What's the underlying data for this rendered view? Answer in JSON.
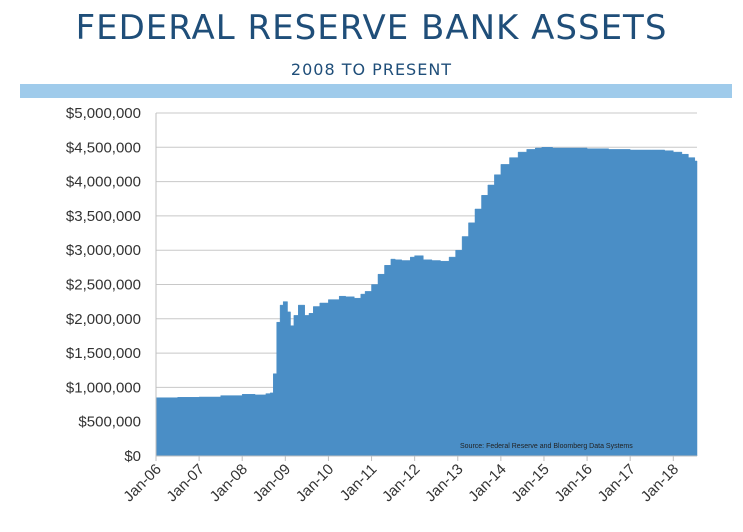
{
  "header": {
    "title": "FEDERAL RESERVE BANK ASSETS",
    "subtitle": "2008 TO PRESENT",
    "band_color": "#9fcbeb",
    "title_color": "#1f4e79"
  },
  "chart_data": {
    "type": "area",
    "title": "FEDERAL RESERVE BANK ASSETS",
    "subtitle": "2008 TO PRESENT",
    "xlabel": "",
    "ylabel": "",
    "ylim": [
      0,
      5000000
    ],
    "y_ticks": [
      0,
      500000,
      1000000,
      1500000,
      2000000,
      2500000,
      3000000,
      3500000,
      4000000,
      4500000,
      5000000
    ],
    "y_tick_labels": [
      "$0",
      "$500,000",
      "$1,000,000",
      "$1,500,000",
      "$2,000,000",
      "$2,500,000",
      "$3,000,000",
      "$3,500,000",
      "$4,000,000",
      "$4,500,000",
      "$5,000,000"
    ],
    "x_range": [
      2006.0,
      2018.55
    ],
    "x_ticks": [
      2006,
      2007,
      2008,
      2009,
      2010,
      2011,
      2012,
      2013,
      2014,
      2015,
      2016,
      2017,
      2018
    ],
    "x_tick_labels": [
      "Jan-06",
      "Jan-07",
      "Jan-08",
      "Jan-09",
      "Jan-10",
      "Jan-11",
      "Jan-12",
      "Jan-13",
      "Jan-14",
      "Jan-15",
      "Jan-16",
      "Jan-17",
      "Jan-18"
    ],
    "grid": true,
    "legend": "none",
    "fill_color": "#4a8ec6",
    "source_note": "Source:  Federal Reserve and Bloomberg Data Systems",
    "series": [
      {
        "x": [
          2006.0,
          2006.5,
          2007.0,
          2007.5,
          2008.0,
          2008.3,
          2008.55,
          2008.65,
          2008.72,
          2008.8,
          2008.88,
          2008.95,
          2009.05,
          2009.12,
          2009.2,
          2009.3,
          2009.45,
          2009.55,
          2009.65,
          2009.8,
          2010.0,
          2010.25,
          2010.4,
          2010.6,
          2010.75,
          2010.85,
          2011.0,
          2011.15,
          2011.3,
          2011.45,
          2011.55,
          2011.7,
          2011.9,
          2012.0,
          2012.2,
          2012.4,
          2012.6,
          2012.8,
          2012.95,
          2013.1,
          2013.25,
          2013.4,
          2013.55,
          2013.7,
          2013.85,
          2014.0,
          2014.2,
          2014.4,
          2014.6,
          2014.8,
          2014.95,
          2015.2,
          2015.5,
          2016.0,
          2016.5,
          2017.0,
          2017.5,
          2017.8,
          2018.0,
          2018.2,
          2018.35,
          2018.5,
          2018.55
        ],
        "y": [
          850000,
          855000,
          860000,
          880000,
          900000,
          890000,
          910000,
          920000,
          1200000,
          1950000,
          2200000,
          2250000,
          2100000,
          1900000,
          2050000,
          2200000,
          2050000,
          2080000,
          2180000,
          2230000,
          2280000,
          2330000,
          2320000,
          2300000,
          2360000,
          2400000,
          2500000,
          2650000,
          2780000,
          2870000,
          2860000,
          2850000,
          2900000,
          2920000,
          2860000,
          2850000,
          2840000,
          2900000,
          3000000,
          3200000,
          3400000,
          3600000,
          3800000,
          3950000,
          4100000,
          4250000,
          4350000,
          4430000,
          4470000,
          4490000,
          4500000,
          4490000,
          4490000,
          4480000,
          4470000,
          4460000,
          4460000,
          4450000,
          4430000,
          4400000,
          4350000,
          4300000,
          4250000
        ]
      }
    ]
  }
}
